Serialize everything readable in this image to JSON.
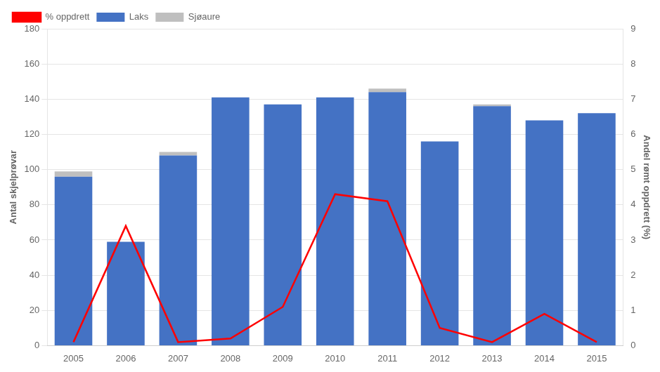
{
  "chart_data": {
    "type": "bar",
    "stacked": true,
    "categories": [
      "2005",
      "2006",
      "2007",
      "2008",
      "2009",
      "2010",
      "2011",
      "2012",
      "2013",
      "2014",
      "2015"
    ],
    "series": [
      {
        "name": "Laks",
        "color": "#4472C4",
        "values": [
          96,
          59,
          108,
          141,
          137,
          141,
          144,
          116,
          136,
          128,
          132
        ]
      },
      {
        "name": "Sjøaure",
        "color": "#BFBFBF",
        "values": [
          3,
          0,
          2,
          0,
          0,
          0,
          2,
          0,
          1,
          0,
          0
        ]
      },
      {
        "name": "% oppdrett",
        "type": "line",
        "axis": "y2",
        "color": "#FF0000",
        "values": [
          0.1,
          3.4,
          0.1,
          0.2,
          1.1,
          4.3,
          4.1,
          0.5,
          0.1,
          0.9,
          0.1
        ]
      }
    ],
    "ylabel": "Antal skjelprøvar",
    "y2label": "Andel rømt oppdrett (%)",
    "ylim": [
      0,
      180
    ],
    "yticks": [
      0,
      20,
      40,
      60,
      80,
      100,
      120,
      140,
      160,
      180
    ],
    "y2lim": [
      0,
      9
    ],
    "y2ticks": [
      0,
      1,
      2,
      3,
      4,
      5,
      6,
      7,
      8,
      9
    ],
    "grid": true,
    "legend": "upper left"
  }
}
